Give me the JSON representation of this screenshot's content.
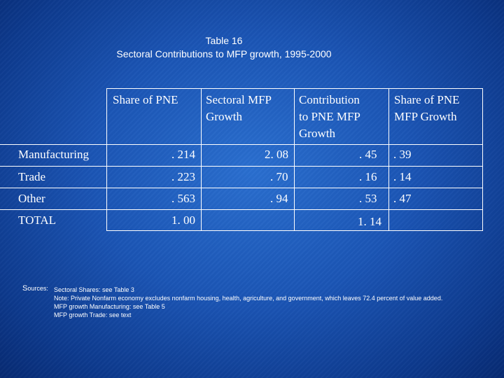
{
  "title": {
    "line1": "Table 16",
    "line2": "Sectoral Contributions to MFP growth, 1995-2000"
  },
  "table": {
    "headers": [
      "Share of PNE",
      "Sectoral MFP Growth",
      "Contribution to PNE MFP Growth",
      "Share of PNE MFP Growth"
    ],
    "header_lines": [
      [
        "Share of PNE"
      ],
      [
        "Sectoral MFP",
        "Growth"
      ],
      [
        "Contribution",
        "to PNE MFP",
        "Growth"
      ],
      [
        "Share of PNE",
        "MFP Growth"
      ]
    ],
    "rows": [
      {
        "label": "Manufacturing",
        "share": ". 214",
        "sectoral": "2. 08",
        "contribution": ". 45",
        "share_mfp": ". 39"
      },
      {
        "label": "Trade",
        "share": ". 223",
        "sectoral": ". 70",
        "contribution": ". 16",
        "share_mfp": ". 14"
      },
      {
        "label": "Other",
        "share": ". 563",
        "sectoral": ". 94",
        "contribution": ". 53",
        "share_mfp": ". 47"
      },
      {
        "label": "TOTAL",
        "share": "1. 00",
        "sectoral": "",
        "contribution": "1. 14",
        "share_mfp": ""
      }
    ]
  },
  "sources": {
    "label_initial": "S",
    "label_rest": "ources:",
    "line1": "Sectoral Shares:  see Table 3",
    "line2": "Note:  Private Nonfarm economy excludes nonfarm housing, health, agriculture, and government, which leaves 72.4 percent of value added.",
    "line3": "MFP growth Manufacturing:  see  Table 5",
    "line4": "MFP growth Trade:  see text"
  },
  "colors": {
    "background": "#1b55b5",
    "text": "#ffffff"
  }
}
